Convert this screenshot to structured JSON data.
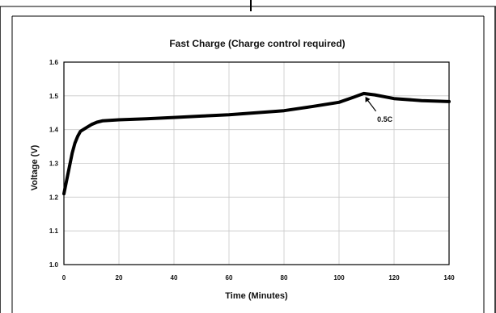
{
  "chart_data": {
    "type": "line",
    "title": "Fast Charge (Charge control required)",
    "xlabel": "Time (Minutes)",
    "ylabel": "Voltage (V)",
    "xlim": [
      0,
      140
    ],
    "ylim": [
      1.0,
      1.6
    ],
    "x_ticks": [
      0,
      20,
      40,
      60,
      80,
      100,
      120,
      140
    ],
    "y_ticks": [
      1.0,
      1.1,
      1.2,
      1.3,
      1.4,
      1.5,
      1.6
    ],
    "x_tick_labels": [
      "0",
      "20",
      "40",
      "60",
      "80",
      "100",
      "120",
      "140"
    ],
    "y_tick_labels": [
      "1.0",
      "1.1",
      "1.2",
      "1.3",
      "1.4",
      "1.5",
      "1.6"
    ],
    "grid": true,
    "series": [
      {
        "x": [
          0,
          1,
          2,
          3,
          4,
          5,
          6,
          7,
          8,
          10,
          12,
          14,
          20,
          30,
          40,
          50,
          60,
          70,
          80,
          90,
          100,
          105,
          109,
          113,
          120,
          130,
          140
        ],
        "y": [
          1.21,
          1.25,
          1.29,
          1.33,
          1.36,
          1.38,
          1.395,
          1.4,
          1.405,
          1.415,
          1.422,
          1.426,
          1.429,
          1.432,
          1.436,
          1.44,
          1.444,
          1.45,
          1.456,
          1.468,
          1.481,
          1.495,
          1.507,
          1.503,
          1.492,
          1.486,
          1.483
        ],
        "color": "#000000"
      }
    ],
    "annotations": [
      {
        "text": "0.5C",
        "x": 109,
        "y": 1.507
      }
    ]
  }
}
